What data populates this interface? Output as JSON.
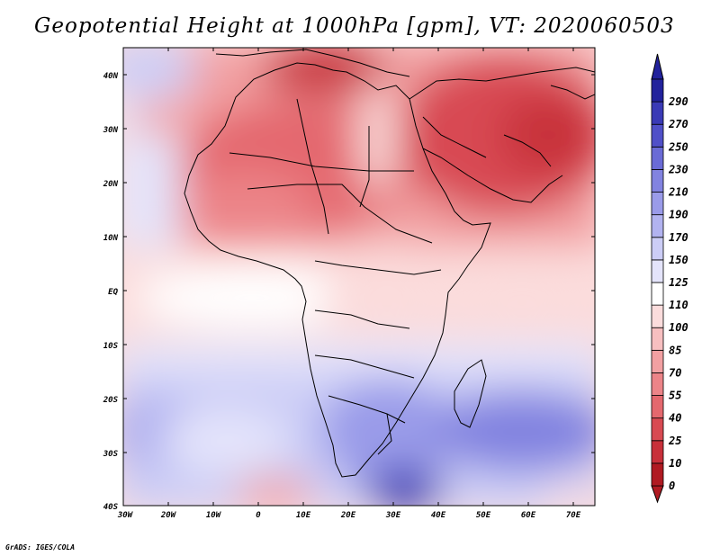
{
  "header": {
    "title": "Geopotential Height at 1000hPa [gpm], VT: 2020060503"
  },
  "footer": {
    "credit": "GrADS: IGES/COLA"
  },
  "map": {
    "region": "Africa",
    "variable": "Geopotential Height",
    "level": "1000hPa",
    "units": "gpm",
    "valid_time": "2020060503",
    "lon_labels": [
      "30W",
      "20W",
      "10W",
      "0",
      "10E",
      "20E",
      "30E",
      "40E",
      "50E",
      "60E",
      "70E"
    ],
    "lat_labels": [
      "40N",
      "30N",
      "20N",
      "10N",
      "EQ",
      "10S",
      "20S",
      "30S",
      "40S"
    ]
  },
  "colorbar": {
    "levels": [
      "0",
      "10",
      "25",
      "40",
      "55",
      "70",
      "85",
      "100",
      "110",
      "125",
      "150",
      "170",
      "190",
      "210",
      "230",
      "250",
      "270",
      "290"
    ],
    "colors": [
      "#b01a22",
      "#c8303a",
      "#d84a52",
      "#e4686e",
      "#ec8488",
      "#f2a0a2",
      "#f7bfc0",
      "#fbdcdc",
      "#ffffff",
      "#e4e4fb",
      "#cccdf6",
      "#b2b3f0",
      "#9a9be9",
      "#8283e0",
      "#6a6bd6",
      "#5050c8",
      "#3a3ab6",
      "#22229c"
    ]
  }
}
